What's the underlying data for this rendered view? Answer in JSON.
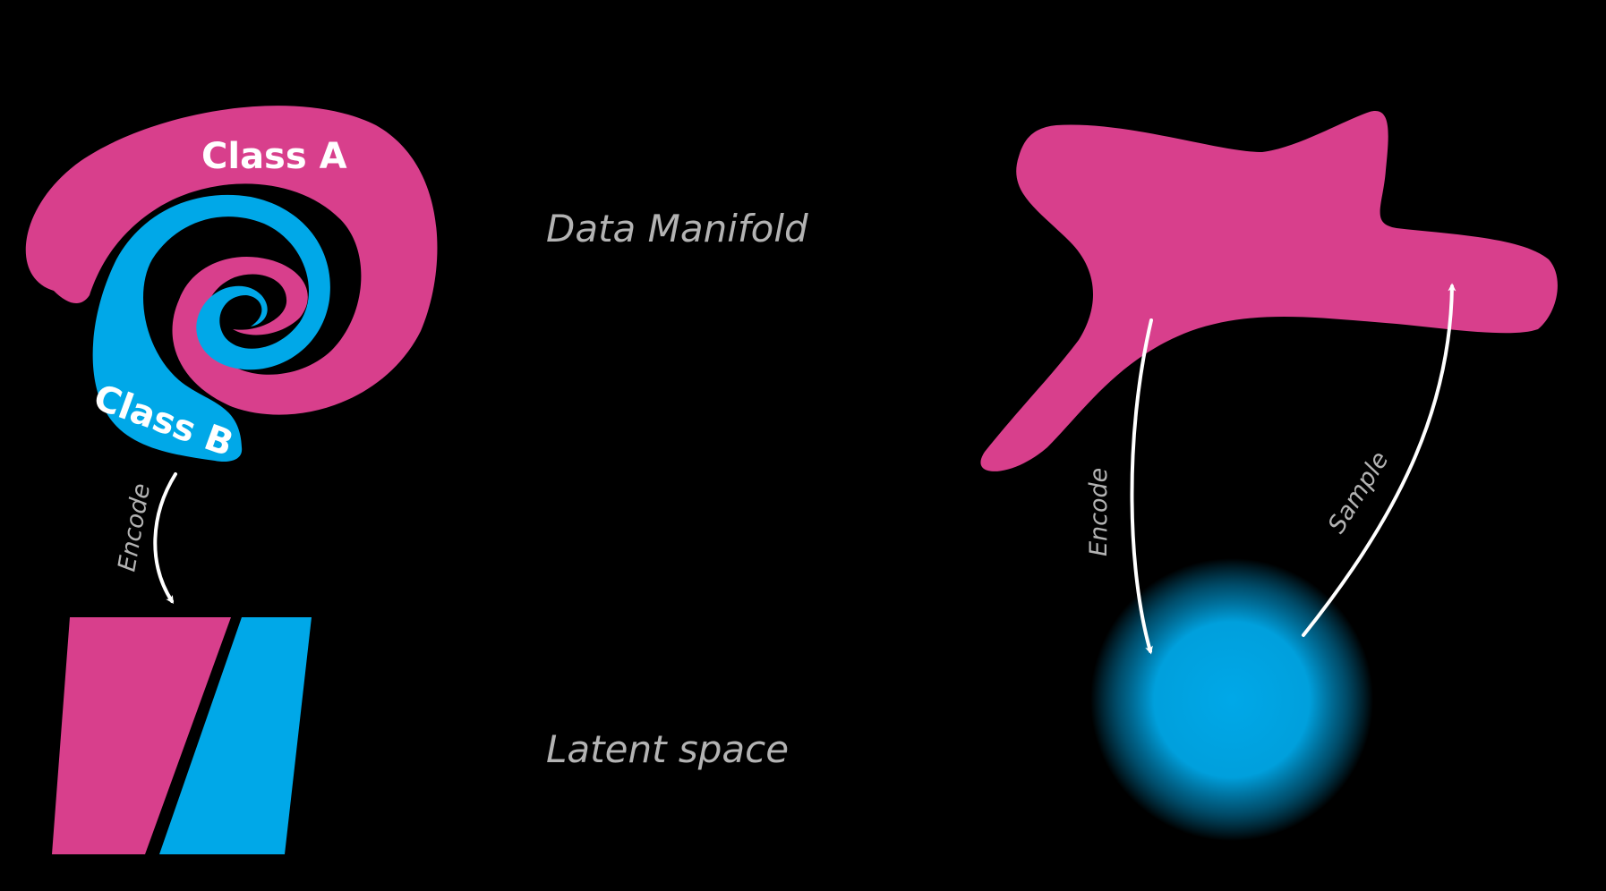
{
  "colors": {
    "background": "#000000",
    "class_a": "#d83f8c",
    "class_b": "#00a8e8",
    "arrow": "#ffffff",
    "label": "#b3b3b3"
  },
  "labels": {
    "data_manifold": "Data Manifold",
    "latent_space": "Latent space",
    "class_a": "Class A",
    "class_b": "Class B",
    "encode_left": "Encode",
    "encode_right": "Encode",
    "sample": "Sample"
  }
}
